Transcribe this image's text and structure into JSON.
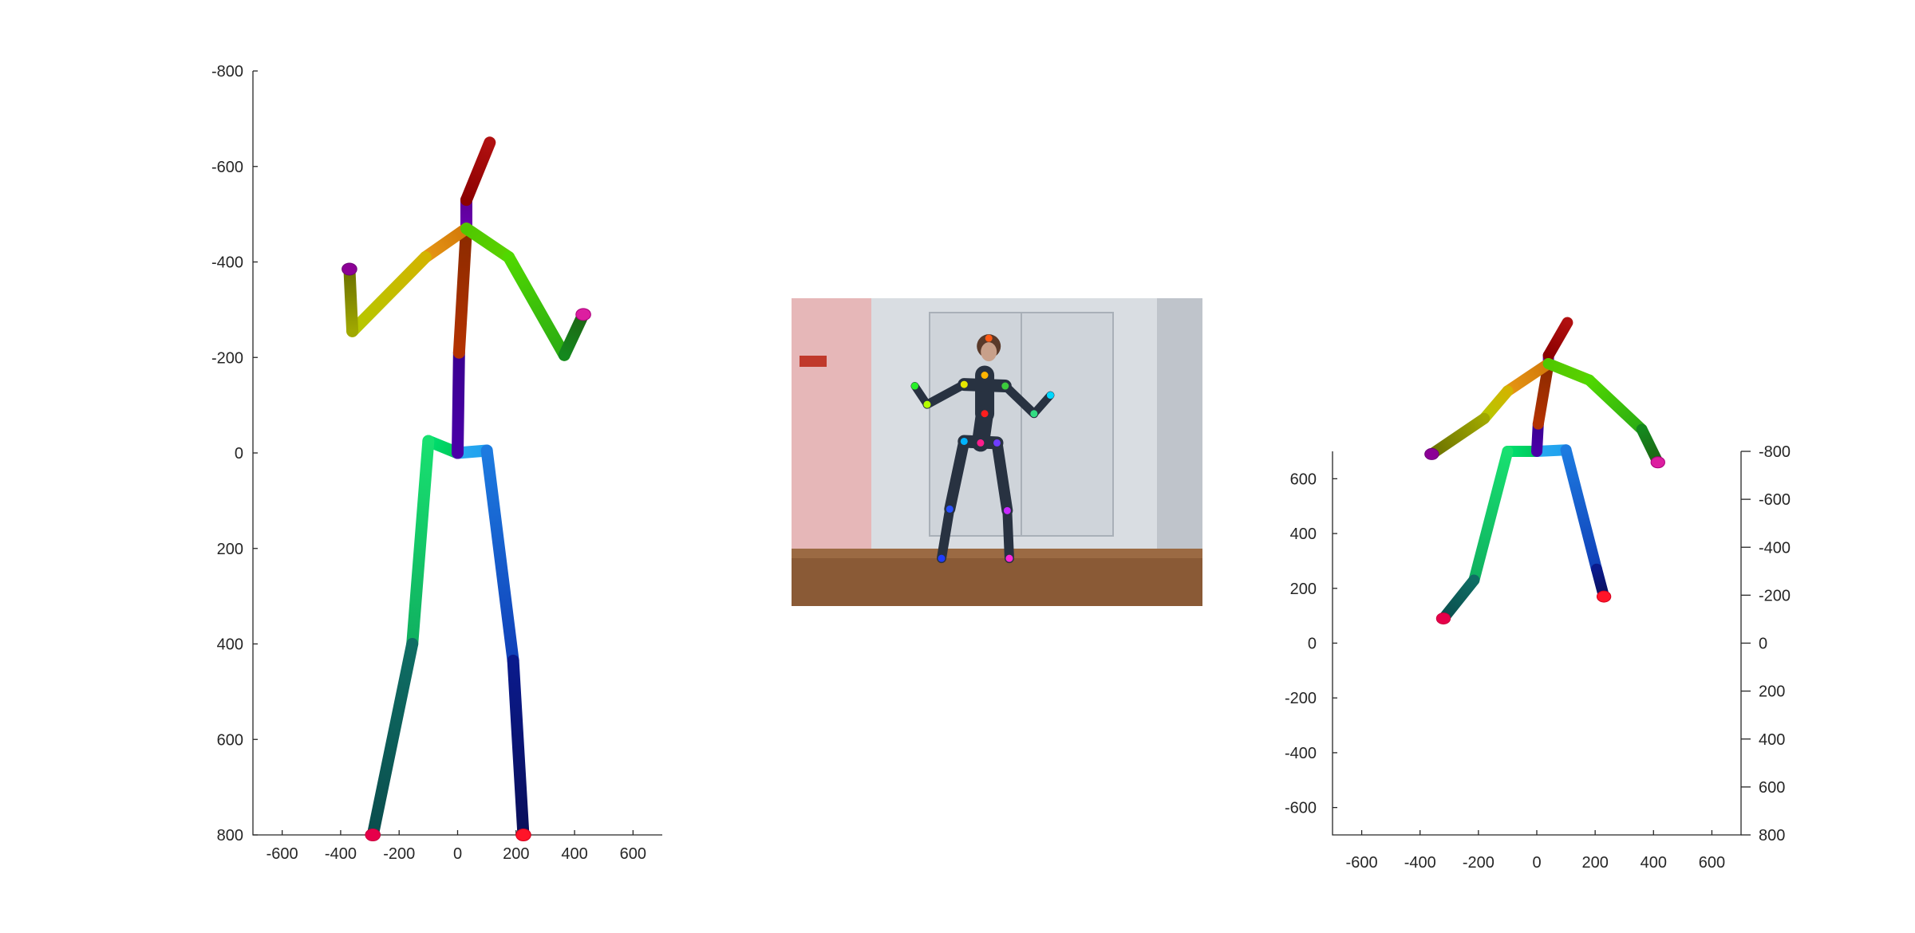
{
  "colors": {
    "axis": "#262626",
    "background": "#ffffff"
  },
  "chart_data": [
    {
      "type": "3d-skeleton-front-view",
      "x_ticks": [
        "-600",
        "-400",
        "-200",
        "0",
        "200",
        "400",
        "600"
      ],
      "y_ticks": [
        "-800",
        "-600",
        "-400",
        "-200",
        "0",
        "200",
        "400",
        "600",
        "800"
      ],
      "xlim": [
        -700,
        700
      ],
      "ylim": [
        -800,
        800
      ],
      "y_reversed": true,
      "joints": {
        "pelvis": [
          0,
          0
        ],
        "r_hip": [
          -100,
          -25
        ],
        "r_knee": [
          -155,
          400
        ],
        "r_ankle": [
          -290,
          800
        ],
        "l_hip": [
          100,
          -5
        ],
        "l_knee": [
          190,
          435
        ],
        "l_ankle": [
          225,
          800
        ],
        "spine": [
          5,
          -210
        ],
        "thorax": [
          30,
          -470
        ],
        "neck": [
          30,
          -530
        ],
        "head": [
          110,
          -650
        ],
        "r_shoulder": [
          -110,
          -410
        ],
        "r_elbow": [
          -360,
          -255
        ],
        "r_wrist": [
          -370,
          -385
        ],
        "l_shoulder": [
          175,
          -410
        ],
        "l_elbow": [
          365,
          -205
        ],
        "l_wrist": [
          430,
          -290
        ]
      }
    },
    {
      "type": "photo-keypoints",
      "keypoints": [
        {
          "part": "head",
          "u": 0.48,
          "v": 0.13,
          "color": "#ff5a14"
        },
        {
          "part": "neck",
          "u": 0.47,
          "v": 0.25,
          "color": "#ffb400"
        },
        {
          "part": "r_shoulder",
          "u": 0.42,
          "v": 0.28,
          "color": "#e6e600"
        },
        {
          "part": "l_shoulder",
          "u": 0.52,
          "v": 0.285,
          "color": "#3ccc3c"
        },
        {
          "part": "r_elbow",
          "u": 0.33,
          "v": 0.345,
          "color": "#b4ff00"
        },
        {
          "part": "r_wrist",
          "u": 0.3,
          "v": 0.285,
          "color": "#28f028"
        },
        {
          "part": "l_elbow",
          "u": 0.59,
          "v": 0.375,
          "color": "#32dc82"
        },
        {
          "part": "l_wrist",
          "u": 0.63,
          "v": 0.315,
          "color": "#00d8ff"
        },
        {
          "part": "spine",
          "u": 0.47,
          "v": 0.375,
          "color": "#ff1e1e"
        },
        {
          "part": "r_hip",
          "u": 0.42,
          "v": 0.465,
          "color": "#00b4ff"
        },
        {
          "part": "pelvis",
          "u": 0.46,
          "v": 0.47,
          "color": "#ff1e8c"
        },
        {
          "part": "l_hip",
          "u": 0.5,
          "v": 0.47,
          "color": "#6e3cff"
        },
        {
          "part": "r_knee",
          "u": 0.385,
          "v": 0.685,
          "color": "#2850ff"
        },
        {
          "part": "l_knee",
          "u": 0.525,
          "v": 0.69,
          "color": "#c828ff"
        },
        {
          "part": "r_ankle",
          "u": 0.365,
          "v": 0.845,
          "color": "#1e3cff"
        },
        {
          "part": "l_ankle",
          "u": 0.53,
          "v": 0.845,
          "color": "#ff28dc"
        }
      ]
    },
    {
      "type": "3d-skeleton-perspective-view",
      "x_ticks": [
        "-600",
        "-400",
        "-200",
        "0",
        "200",
        "400",
        "600"
      ],
      "left_ticks": [
        "600",
        "400",
        "200",
        "0",
        "-200",
        "-400",
        "-600"
      ],
      "right_ticks": [
        "-800",
        "-600",
        "-400",
        "-200",
        "0",
        "200",
        "400",
        "600",
        "800"
      ],
      "xlim": [
        -700,
        700
      ],
      "left_lim": [
        700,
        -700
      ],
      "right_lim": [
        -800,
        800
      ],
      "joints": {
        "pelvis": [
          0,
          700
        ],
        "r_hip": [
          -100,
          700
        ],
        "r_knee": [
          -215,
          230
        ],
        "r_ankle": [
          -320,
          90
        ],
        "l_hip": [
          100,
          705
        ],
        "l_knee": [
          205,
          270
        ],
        "l_ankle": [
          230,
          170
        ],
        "spine": [
          5,
          800
        ],
        "thorax": [
          40,
          1020
        ],
        "neck": [
          40,
          1050
        ],
        "head": [
          105,
          1170
        ],
        "r_shoulder": [
          -100,
          920
        ],
        "r_elbow": [
          -180,
          820
        ],
        "r_wrist": [
          -360,
          690
        ],
        "l_shoulder": [
          180,
          960
        ],
        "l_elbow": [
          360,
          780
        ],
        "l_wrist": [
          415,
          660
        ]
      }
    }
  ]
}
